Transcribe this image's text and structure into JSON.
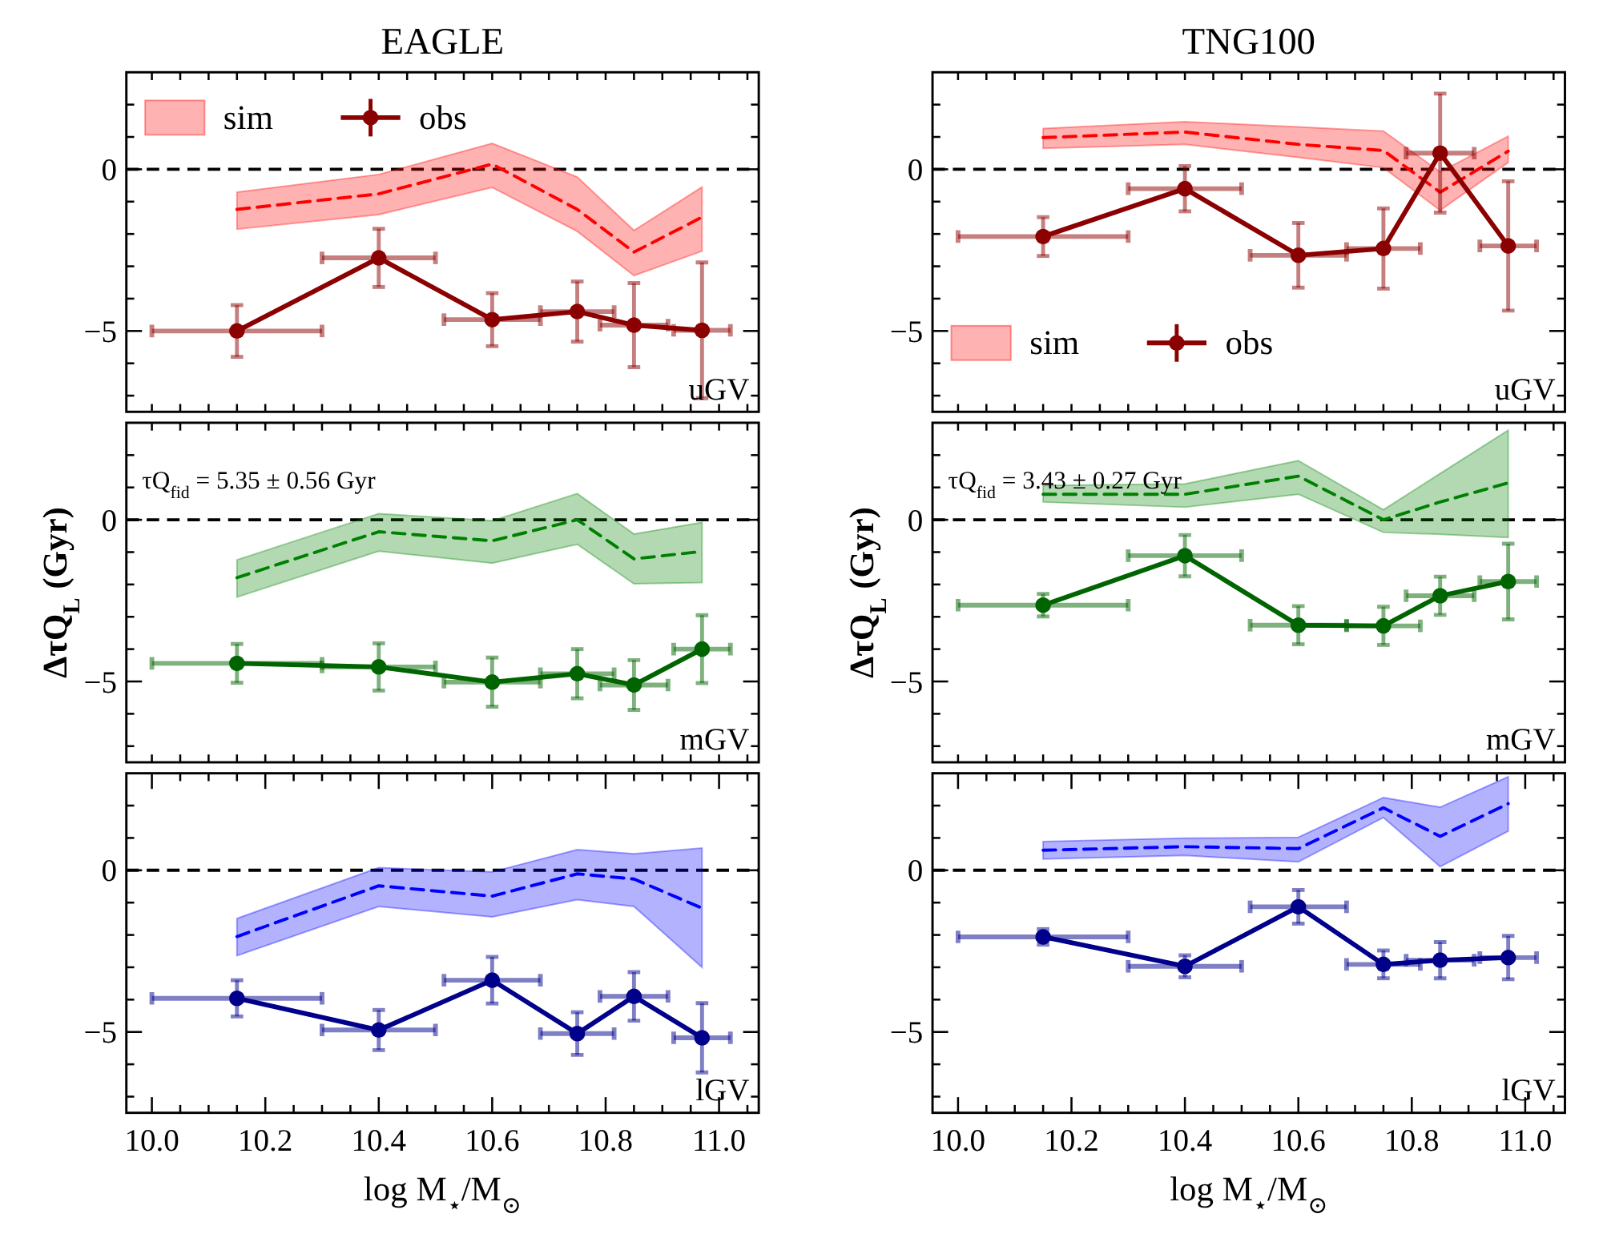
{
  "chart_data": [
    {
      "type": "line",
      "title": "EAGLE",
      "x": [
        10.15,
        10.4,
        10.6,
        10.75,
        10.85,
        10.97
      ],
      "xlim": [
        9.955,
        11.07
      ],
      "xticks": [
        {
          "value": 10,
          "label": null
        },
        {
          "value": 10.05,
          "label": null
        },
        {
          "value": 10.1,
          "label": null
        },
        {
          "value": 10.15,
          "label": null
        },
        {
          "value": 10.2,
          "label": null
        },
        {
          "value": 10.25,
          "label": null
        },
        {
          "value": 10.3,
          "label": null
        },
        {
          "value": 10.35,
          "label": null
        },
        {
          "value": 10.4,
          "label": null
        },
        {
          "value": 10.45,
          "label": null
        },
        {
          "value": 10.5,
          "label": null
        },
        {
          "value": 10.55,
          "label": null
        },
        {
          "value": 10.6,
          "label": null
        },
        {
          "value": 10.65,
          "label": null
        },
        {
          "value": 10.7,
          "label": null
        },
        {
          "value": 10.75,
          "label": null
        },
        {
          "value": 10.8,
          "label": null
        },
        {
          "value": 10.85,
          "label": null
        },
        {
          "value": 10.9,
          "label": null
        },
        {
          "value": 10.95,
          "label": null
        },
        {
          "value": 11,
          "label": null
        },
        {
          "value": 11.05,
          "label": null
        }
      ],
      "ylim": [
        -7.5,
        3
      ],
      "yticks": [
        {
          "value": -7,
          "label": null
        },
        {
          "value": -6,
          "label": null
        },
        {
          "value": -5,
          "label": "−5"
        },
        {
          "value": -4,
          "label": null
        },
        {
          "value": -3,
          "label": null
        },
        {
          "value": -2,
          "label": null
        },
        {
          "value": -1,
          "label": null
        },
        {
          "value": 0,
          "label": "0"
        },
        {
          "value": 1,
          "label": null
        },
        {
          "value": 2,
          "label": null
        }
      ],
      "tick_labels": "y",
      "legend": "top left",
      "ref_lines": [
        {
          "axis": "y",
          "value": 0,
          "color": "#000000",
          "line_style": "dashed"
        }
      ],
      "annotations": [
        "uGV"
      ],
      "series": [
        {
          "name": "sim",
          "type": "line",
          "color": "#ff0000",
          "line_style": "dashed",
          "marker": "none",
          "values": [
            -1.24,
            -0.76,
            0.16,
            -1.24,
            -2.56,
            -1.48
          ],
          "lower": [
            -1.85,
            -1.4,
            -0.56,
            -1.92,
            -3.29,
            -2.53
          ],
          "upper": [
            -0.71,
            -0.16,
            0.8,
            -0.24,
            -1.89,
            -0.55
          ]
        },
        {
          "name": "obs",
          "type": "line",
          "color": "#8b0000",
          "line_style": "solid",
          "marker": "circle",
          "values": [
            -5.0,
            -2.74,
            -4.65,
            -4.4,
            -4.82,
            -4.98
          ],
          "errors": [
            0.8,
            0.9,
            0.82,
            0.93,
            1.3,
            2.1
          ],
          "xerrors": [
            0.15,
            0.1,
            0.085,
            0.065,
            0.06,
            0.05
          ]
        }
      ]
    },
    {
      "type": "line",
      "title": "TNG100",
      "x": [
        10.15,
        10.4,
        10.6,
        10.75,
        10.85,
        10.97
      ],
      "xlim": [
        9.955,
        11.07
      ],
      "xticks": [
        {
          "value": 10,
          "label": null
        },
        {
          "value": 10.05,
          "label": null
        },
        {
          "value": 10.1,
          "label": null
        },
        {
          "value": 10.15,
          "label": null
        },
        {
          "value": 10.2,
          "label": null
        },
        {
          "value": 10.25,
          "label": null
        },
        {
          "value": 10.3,
          "label": null
        },
        {
          "value": 10.35,
          "label": null
        },
        {
          "value": 10.4,
          "label": null
        },
        {
          "value": 10.45,
          "label": null
        },
        {
          "value": 10.5,
          "label": null
        },
        {
          "value": 10.55,
          "label": null
        },
        {
          "value": 10.6,
          "label": null
        },
        {
          "value": 10.65,
          "label": null
        },
        {
          "value": 10.7,
          "label": null
        },
        {
          "value": 10.75,
          "label": null
        },
        {
          "value": 10.8,
          "label": null
        },
        {
          "value": 10.85,
          "label": null
        },
        {
          "value": 10.9,
          "label": null
        },
        {
          "value": 10.95,
          "label": null
        },
        {
          "value": 11,
          "label": null
        },
        {
          "value": 11.05,
          "label": null
        }
      ],
      "ylim": [
        -7.5,
        3
      ],
      "yticks": [
        {
          "value": -7,
          "label": null
        },
        {
          "value": -6,
          "label": null
        },
        {
          "value": -5,
          "label": "−5"
        },
        {
          "value": -4,
          "label": null
        },
        {
          "value": -3,
          "label": null
        },
        {
          "value": -2,
          "label": null
        },
        {
          "value": -1,
          "label": null
        },
        {
          "value": 0,
          "label": "0"
        },
        {
          "value": 1,
          "label": null
        },
        {
          "value": 2,
          "label": null
        }
      ],
      "tick_labels": "y",
      "legend": "bottom left",
      "ref_lines": [
        {
          "axis": "y",
          "value": 0,
          "color": "#000000",
          "line_style": "dashed"
        }
      ],
      "annotations": [
        "uGV"
      ],
      "series": [
        {
          "name": "sim",
          "type": "line",
          "color": "#ff0000",
          "line_style": "dashed",
          "marker": "none",
          "values": [
            0.98,
            1.15,
            0.77,
            0.58,
            -0.71,
            0.56
          ],
          "lower": [
            0.65,
            0.77,
            0.37,
            0.05,
            -1.27,
            0.21
          ],
          "upper": [
            1.26,
            1.47,
            1.31,
            1.18,
            -0.08,
            1.02
          ]
        },
        {
          "name": "obs",
          "type": "line",
          "color": "#8b0000",
          "line_style": "solid",
          "marker": "circle",
          "values": [
            -2.08,
            -0.6,
            -2.66,
            -2.45,
            0.5,
            -2.37
          ],
          "errors": [
            0.6,
            0.7,
            1.0,
            1.24,
            1.84,
            2.0
          ],
          "xerrors": [
            0.15,
            0.1,
            0.085,
            0.065,
            0.06,
            0.05
          ]
        }
      ]
    },
    {
      "type": "line",
      "ylabel": "ΔτQ$_{L}$ (Gyr)",
      "x": [
        10.15,
        10.4,
        10.6,
        10.75,
        10.85,
        10.97
      ],
      "xlim": [
        9.955,
        11.07
      ],
      "xticks": [
        {
          "value": 10,
          "label": null
        },
        {
          "value": 10.05,
          "label": null
        },
        {
          "value": 10.1,
          "label": null
        },
        {
          "value": 10.15,
          "label": null
        },
        {
          "value": 10.2,
          "label": null
        },
        {
          "value": 10.25,
          "label": null
        },
        {
          "value": 10.3,
          "label": null
        },
        {
          "value": 10.35,
          "label": null
        },
        {
          "value": 10.4,
          "label": null
        },
        {
          "value": 10.45,
          "label": null
        },
        {
          "value": 10.5,
          "label": null
        },
        {
          "value": 10.55,
          "label": null
        },
        {
          "value": 10.6,
          "label": null
        },
        {
          "value": 10.65,
          "label": null
        },
        {
          "value": 10.7,
          "label": null
        },
        {
          "value": 10.75,
          "label": null
        },
        {
          "value": 10.8,
          "label": null
        },
        {
          "value": 10.85,
          "label": null
        },
        {
          "value": 10.9,
          "label": null
        },
        {
          "value": 10.95,
          "label": null
        },
        {
          "value": 11,
          "label": null
        },
        {
          "value": 11.05,
          "label": null
        }
      ],
      "ylim": [
        -7.5,
        3
      ],
      "yticks": [
        {
          "value": -7,
          "label": null
        },
        {
          "value": -6,
          "label": null
        },
        {
          "value": -5,
          "label": "−5"
        },
        {
          "value": -4,
          "label": null
        },
        {
          "value": -3,
          "label": null
        },
        {
          "value": -2,
          "label": null
        },
        {
          "value": -1,
          "label": null
        },
        {
          "value": 0,
          "label": "0"
        },
        {
          "value": 1,
          "label": null
        },
        {
          "value": 2,
          "label": null
        }
      ],
      "tick_labels": "y",
      "ref_lines": [
        {
          "axis": "y",
          "value": 0,
          "color": "#000000",
          "line_style": "dashed"
        }
      ],
      "annotations": [
        "mGV",
        "τQ$_{fid}$ = 5.35 ± 0.56 Gyr"
      ],
      "series": [
        {
          "type": "line",
          "color": "#008000",
          "line_style": "dashed",
          "marker": "none",
          "values": [
            -1.79,
            -0.37,
            -0.65,
            0.0,
            -1.21,
            -0.98
          ],
          "lower": [
            -2.39,
            -0.97,
            -1.34,
            -0.76,
            -1.98,
            -1.94
          ],
          "upper": [
            -1.24,
            0.19,
            -0.03,
            0.81,
            -0.44,
            -0.08
          ]
        },
        {
          "type": "line",
          "color": "#006400",
          "line_style": "solid",
          "marker": "circle",
          "values": [
            -4.44,
            -4.55,
            -5.02,
            -4.76,
            -5.11,
            -4.0
          ],
          "errors": [
            0.6,
            0.73,
            0.76,
            0.76,
            0.77,
            1.05
          ],
          "xerrors": [
            0.15,
            0.1,
            0.085,
            0.065,
            0.06,
            0.05
          ]
        }
      ]
    },
    {
      "type": "line",
      "ylabel": "ΔτQ$_{L}$ (Gyr)",
      "x": [
        10.15,
        10.4,
        10.6,
        10.75,
        10.85,
        10.97
      ],
      "xlim": [
        9.955,
        11.07
      ],
      "xticks": [
        {
          "value": 10,
          "label": null
        },
        {
          "value": 10.05,
          "label": null
        },
        {
          "value": 10.1,
          "label": null
        },
        {
          "value": 10.15,
          "label": null
        },
        {
          "value": 10.2,
          "label": null
        },
        {
          "value": 10.25,
          "label": null
        },
        {
          "value": 10.3,
          "label": null
        },
        {
          "value": 10.35,
          "label": null
        },
        {
          "value": 10.4,
          "label": null
        },
        {
          "value": 10.45,
          "label": null
        },
        {
          "value": 10.5,
          "label": null
        },
        {
          "value": 10.55,
          "label": null
        },
        {
          "value": 10.6,
          "label": null
        },
        {
          "value": 10.65,
          "label": null
        },
        {
          "value": 10.7,
          "label": null
        },
        {
          "value": 10.75,
          "label": null
        },
        {
          "value": 10.8,
          "label": null
        },
        {
          "value": 10.85,
          "label": null
        },
        {
          "value": 10.9,
          "label": null
        },
        {
          "value": 10.95,
          "label": null
        },
        {
          "value": 11,
          "label": null
        },
        {
          "value": 11.05,
          "label": null
        }
      ],
      "ylim": [
        -7.5,
        3
      ],
      "yticks": [
        {
          "value": -7,
          "label": null
        },
        {
          "value": -6,
          "label": null
        },
        {
          "value": -5,
          "label": "−5"
        },
        {
          "value": -4,
          "label": null
        },
        {
          "value": -3,
          "label": null
        },
        {
          "value": -2,
          "label": null
        },
        {
          "value": -1,
          "label": null
        },
        {
          "value": 0,
          "label": "0"
        },
        {
          "value": 1,
          "label": null
        },
        {
          "value": 2,
          "label": null
        }
      ],
      "tick_labels": "y",
      "ref_lines": [
        {
          "axis": "y",
          "value": 0,
          "color": "#000000",
          "line_style": "dashed"
        }
      ],
      "annotations": [
        "mGV",
        "τQ$_{fid}$ = 3.43 ± 0.27 Gyr"
      ],
      "series": [
        {
          "type": "line",
          "color": "#008000",
          "line_style": "dashed",
          "marker": "none",
          "values": [
            0.79,
            0.79,
            1.35,
            0.0,
            0.55,
            1.14
          ],
          "lower": [
            0.55,
            0.39,
            0.79,
            -0.39,
            -0.45,
            -0.55
          ],
          "upper": [
            1.06,
            1.11,
            1.83,
            0.31,
            1.43,
            2.77
          ]
        },
        {
          "type": "line",
          "color": "#006400",
          "line_style": "solid",
          "marker": "circle",
          "values": [
            -2.64,
            -1.11,
            -3.26,
            -3.28,
            -2.35,
            -1.91
          ],
          "errors": [
            0.35,
            0.64,
            0.59,
            0.59,
            0.59,
            1.17
          ],
          "xerrors": [
            0.15,
            0.1,
            0.085,
            0.065,
            0.06,
            0.05
          ]
        }
      ]
    },
    {
      "type": "line",
      "xlabel": "log M$_{⋆}$/M$_{⊙}$",
      "x": [
        10.15,
        10.4,
        10.6,
        10.75,
        10.85,
        10.97
      ],
      "xlim": [
        9.955,
        11.07
      ],
      "xticks": [
        {
          "value": 10,
          "label": "10.0"
        },
        {
          "value": 10.05,
          "label": null
        },
        {
          "value": 10.1,
          "label": null
        },
        {
          "value": 10.15,
          "label": null
        },
        {
          "value": 10.2,
          "label": "10.2"
        },
        {
          "value": 10.25,
          "label": null
        },
        {
          "value": 10.3,
          "label": null
        },
        {
          "value": 10.35,
          "label": null
        },
        {
          "value": 10.4,
          "label": "10.4"
        },
        {
          "value": 10.45,
          "label": null
        },
        {
          "value": 10.5,
          "label": null
        },
        {
          "value": 10.55,
          "label": null
        },
        {
          "value": 10.6,
          "label": "10.6"
        },
        {
          "value": 10.65,
          "label": null
        },
        {
          "value": 10.7,
          "label": null
        },
        {
          "value": 10.75,
          "label": null
        },
        {
          "value": 10.8,
          "label": "10.8"
        },
        {
          "value": 10.85,
          "label": null
        },
        {
          "value": 10.9,
          "label": null
        },
        {
          "value": 10.95,
          "label": null
        },
        {
          "value": 11,
          "label": "11.0"
        },
        {
          "value": 11.05,
          "label": null
        }
      ],
      "ylim": [
        -7.5,
        3
      ],
      "yticks": [
        {
          "value": -7,
          "label": null
        },
        {
          "value": -6,
          "label": null
        },
        {
          "value": -5,
          "label": "−5"
        },
        {
          "value": -4,
          "label": null
        },
        {
          "value": -3,
          "label": null
        },
        {
          "value": -2,
          "label": null
        },
        {
          "value": -1,
          "label": null
        },
        {
          "value": 0,
          "label": "0"
        },
        {
          "value": 1,
          "label": null
        },
        {
          "value": 2,
          "label": null
        }
      ],
      "ref_lines": [
        {
          "axis": "y",
          "value": 0,
          "color": "#000000",
          "line_style": "dashed"
        }
      ],
      "annotations": [
        "lGV"
      ],
      "series": [
        {
          "type": "line",
          "color": "#0000ff",
          "line_style": "dashed",
          "marker": "none",
          "values": [
            -2.05,
            -0.48,
            -0.8,
            -0.11,
            -0.27,
            -1.17
          ],
          "lower": [
            -2.64,
            -1.12,
            -1.44,
            -0.91,
            -1.12,
            -3.0
          ],
          "upper": [
            -1.49,
            0.08,
            -0.05,
            0.64,
            0.51,
            0.69
          ]
        },
        {
          "type": "line",
          "color": "#00008b",
          "line_style": "solid",
          "marker": "circle",
          "values": [
            -3.96,
            -4.94,
            -3.4,
            -5.05,
            -3.9,
            -5.18
          ],
          "errors": [
            0.56,
            0.62,
            0.72,
            0.66,
            0.75,
            1.07
          ],
          "xerrors": [
            0.15,
            0.1,
            0.085,
            0.065,
            0.06,
            0.05
          ]
        }
      ]
    },
    {
      "type": "line",
      "xlabel": "log M$_{⋆}$/M$_{⊙}$",
      "x": [
        10.15,
        10.4,
        10.6,
        10.75,
        10.85,
        10.97
      ],
      "xlim": [
        9.955,
        11.07
      ],
      "xticks": [
        {
          "value": 10,
          "label": "10.0"
        },
        {
          "value": 10.05,
          "label": null
        },
        {
          "value": 10.1,
          "label": null
        },
        {
          "value": 10.15,
          "label": null
        },
        {
          "value": 10.2,
          "label": "10.2"
        },
        {
          "value": 10.25,
          "label": null
        },
        {
          "value": 10.3,
          "label": null
        },
        {
          "value": 10.35,
          "label": null
        },
        {
          "value": 10.4,
          "label": "10.4"
        },
        {
          "value": 10.45,
          "label": null
        },
        {
          "value": 10.5,
          "label": null
        },
        {
          "value": 10.55,
          "label": null
        },
        {
          "value": 10.6,
          "label": "10.6"
        },
        {
          "value": 10.65,
          "label": null
        },
        {
          "value": 10.7,
          "label": null
        },
        {
          "value": 10.75,
          "label": null
        },
        {
          "value": 10.8,
          "label": "10.8"
        },
        {
          "value": 10.85,
          "label": null
        },
        {
          "value": 10.9,
          "label": null
        },
        {
          "value": 10.95,
          "label": null
        },
        {
          "value": 11,
          "label": "11.0"
        },
        {
          "value": 11.05,
          "label": null
        }
      ],
      "ylim": [
        -7.5,
        3
      ],
      "yticks": [
        {
          "value": -7,
          "label": null
        },
        {
          "value": -6,
          "label": null
        },
        {
          "value": -5,
          "label": "−5"
        },
        {
          "value": -4,
          "label": null
        },
        {
          "value": -3,
          "label": null
        },
        {
          "value": -2,
          "label": null
        },
        {
          "value": -1,
          "label": null
        },
        {
          "value": 0,
          "label": "0"
        },
        {
          "value": 1,
          "label": null
        },
        {
          "value": 2,
          "label": null
        }
      ],
      "ref_lines": [
        {
          "axis": "y",
          "value": 0,
          "color": "#000000",
          "line_style": "dashed"
        }
      ],
      "annotations": [
        "lGV"
      ],
      "series": [
        {
          "type": "line",
          "color": "#0000ff",
          "line_style": "dashed",
          "marker": "none",
          "values": [
            0.62,
            0.73,
            0.67,
            1.93,
            1.05,
            2.06
          ],
          "lower": [
            0.35,
            0.46,
            0.26,
            1.63,
            0.11,
            1.21
          ],
          "upper": [
            0.89,
            0.99,
            1.02,
            2.25,
            1.95,
            2.89
          ]
        },
        {
          "type": "line",
          "color": "#00008b",
          "line_style": "solid",
          "marker": "circle",
          "values": [
            -2.06,
            -2.97,
            -1.13,
            -2.91,
            -2.78,
            -2.7
          ],
          "errors": [
            0.24,
            0.34,
            0.52,
            0.43,
            0.56,
            0.67
          ],
          "xerrors": [
            0.15,
            0.1,
            0.085,
            0.065,
            0.06,
            0.05
          ]
        }
      ]
    }
  ]
}
